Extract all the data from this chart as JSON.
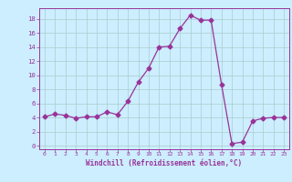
{
  "x": [
    0,
    1,
    2,
    3,
    4,
    5,
    6,
    7,
    8,
    9,
    10,
    11,
    12,
    13,
    14,
    15,
    16,
    17,
    18,
    19,
    20,
    21,
    22,
    23
  ],
  "y": [
    4.1,
    4.5,
    4.3,
    3.9,
    4.1,
    4.1,
    4.8,
    4.4,
    6.3,
    9.0,
    11.0,
    14.0,
    14.1,
    16.6,
    18.5,
    17.8,
    17.8,
    8.7,
    0.3,
    0.5,
    3.5,
    3.9,
    4.0,
    4.0
  ],
  "line_color": "#993399",
  "marker": "D",
  "markersize": 2.5,
  "linewidth": 0.9,
  "background_color": "#cceeff",
  "grid_color": "#aacccc",
  "xlabel": "Windchill (Refroidissement éolien,°C)",
  "ylabel_ticks": [
    0,
    2,
    4,
    6,
    8,
    10,
    12,
    14,
    16,
    18
  ],
  "xlim": [
    -0.5,
    23.5
  ],
  "ylim": [
    -0.5,
    19.5
  ],
  "xtick_labels": [
    "0",
    "1",
    "2",
    "3",
    "4",
    "5",
    "6",
    "7",
    "8",
    "9",
    "10",
    "11",
    "12",
    "13",
    "14",
    "15",
    "16",
    "17",
    "18",
    "19",
    "20",
    "21",
    "22",
    "23"
  ],
  "axes_color": "#993399",
  "tick_color": "#993399",
  "label_color": "#993399",
  "xlabel_fontsize": 5.5,
  "ytick_fontsize": 5.2,
  "xtick_fontsize": 4.5
}
